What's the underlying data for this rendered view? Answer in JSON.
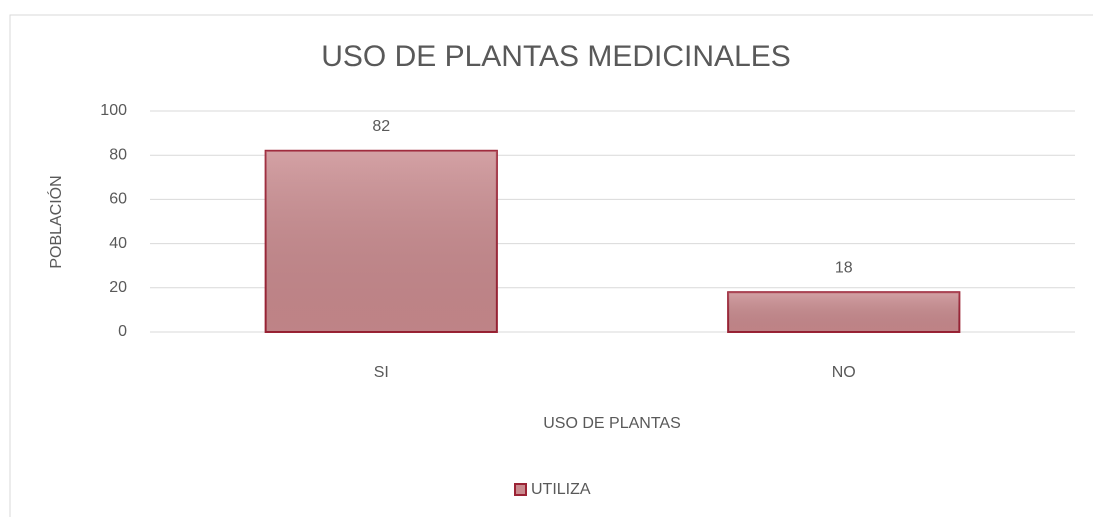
{
  "chart_data": {
    "type": "bar",
    "title": "USO DE PLANTAS MEDICINALES",
    "x_label": "USO DE PLANTAS",
    "y_label": "POBLACIÓN",
    "categories": [
      "SI",
      "NO"
    ],
    "series": [
      {
        "name": "UTILIZA",
        "color": "#c98a8e",
        "values": [
          82,
          18
        ]
      }
    ],
    "ylim": [
      0,
      100
    ],
    "yticks": [
      0,
      20,
      40,
      60,
      80,
      100
    ],
    "grid": true,
    "legend": "bottom"
  }
}
